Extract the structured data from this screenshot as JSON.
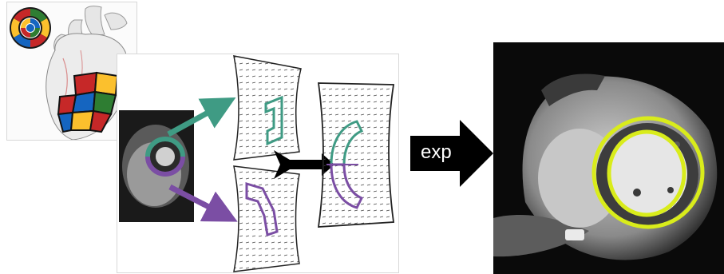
{
  "operation_label": "exp",
  "colors": {
    "teal": "#3f9b84",
    "purple": "#7b4ea4",
    "highlight_yellow": "#d9ec1b",
    "arrow_black": "#000000"
  },
  "icons": [
    "bullseye-icon",
    "heart-illustration",
    "mri-slice-image",
    "deformation-grid",
    "block-arrow"
  ]
}
